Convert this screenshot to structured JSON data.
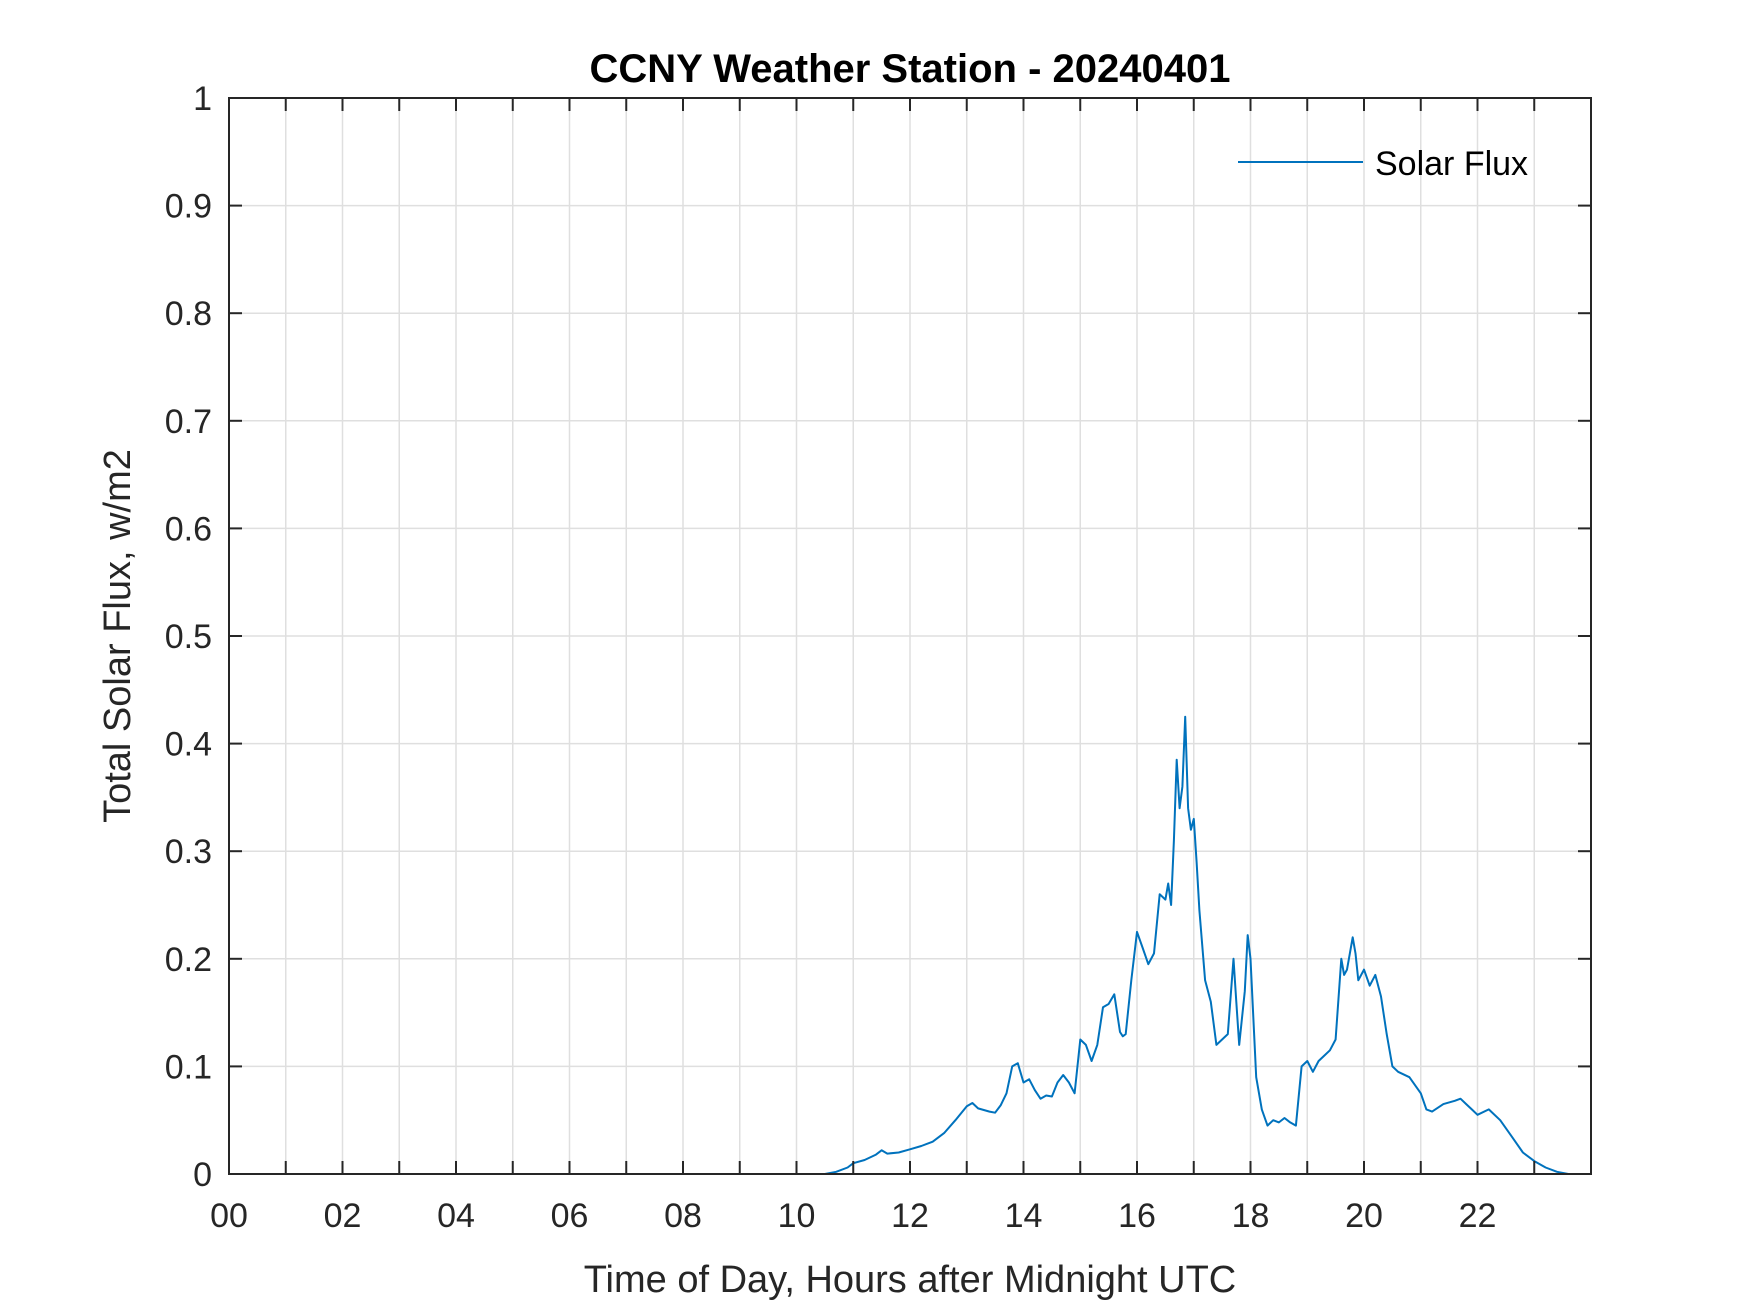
{
  "chart_data": {
    "type": "line",
    "title": "CCNY Weather Station - 20240401",
    "xlabel": "Time of Day, Hours after Midnight UTC",
    "ylabel": "Total Solar Flux, w/m2",
    "xlim": [
      0,
      24
    ],
    "ylim": [
      0,
      1
    ],
    "x_ticks": [
      0,
      2,
      4,
      6,
      8,
      10,
      12,
      14,
      16,
      18,
      20,
      22
    ],
    "x_tick_labels": [
      "00",
      "02",
      "04",
      "06",
      "08",
      "10",
      "12",
      "14",
      "16",
      "18",
      "20",
      "22"
    ],
    "x_minor_ticks": [
      1,
      3,
      5,
      7,
      9,
      11,
      13,
      15,
      17,
      19,
      21,
      23
    ],
    "y_ticks": [
      0,
      0.1,
      0.2,
      0.3,
      0.4,
      0.5,
      0.6,
      0.7,
      0.8,
      0.9,
      1
    ],
    "y_tick_labels": [
      "0",
      "0.1",
      "0.2",
      "0.3",
      "0.4",
      "0.5",
      "0.6",
      "0.7",
      "0.8",
      "0.9",
      "1"
    ],
    "grid": true,
    "legend_position": "top-right",
    "series": [
      {
        "name": "Solar Flux",
        "color": "#0072BD",
        "x": [
          0,
          10.5,
          10.7,
          10.9,
          11.0,
          11.2,
          11.4,
          11.5,
          11.6,
          11.8,
          12.0,
          12.2,
          12.4,
          12.6,
          12.8,
          13.0,
          13.1,
          13.2,
          13.4,
          13.5,
          13.6,
          13.7,
          13.8,
          13.9,
          14.0,
          14.1,
          14.2,
          14.3,
          14.4,
          14.5,
          14.6,
          14.7,
          14.8,
          14.9,
          15.0,
          15.1,
          15.2,
          15.3,
          15.4,
          15.5,
          15.6,
          15.7,
          15.75,
          15.8,
          15.9,
          16.0,
          16.1,
          16.2,
          16.3,
          16.4,
          16.5,
          16.55,
          16.6,
          16.65,
          16.7,
          16.75,
          16.8,
          16.85,
          16.9,
          16.95,
          17.0,
          17.05,
          17.1,
          17.2,
          17.3,
          17.4,
          17.5,
          17.6,
          17.7,
          17.75,
          17.8,
          17.9,
          17.95,
          18.0,
          18.1,
          18.2,
          18.3,
          18.4,
          18.5,
          18.6,
          18.7,
          18.8,
          18.9,
          19.0,
          19.1,
          19.2,
          19.3,
          19.4,
          19.5,
          19.6,
          19.65,
          19.7,
          19.8,
          19.85,
          19.9,
          20.0,
          20.1,
          20.2,
          20.3,
          20.4,
          20.5,
          20.6,
          20.8,
          21.0,
          21.1,
          21.2,
          21.4,
          21.6,
          21.7,
          21.8,
          21.9,
          22.0,
          22.2,
          22.4,
          22.6,
          22.8,
          23.0,
          23.2,
          23.4,
          23.6,
          23.8,
          24.0
        ],
        "values": [
          0,
          0,
          0.002,
          0.006,
          0.01,
          0.013,
          0.018,
          0.022,
          0.019,
          0.02,
          0.023,
          0.026,
          0.03,
          0.038,
          0.05,
          0.063,
          0.066,
          0.061,
          0.058,
          0.057,
          0.064,
          0.075,
          0.1,
          0.103,
          0.085,
          0.088,
          0.078,
          0.07,
          0.073,
          0.072,
          0.085,
          0.092,
          0.085,
          0.075,
          0.125,
          0.12,
          0.105,
          0.12,
          0.155,
          0.158,
          0.167,
          0.132,
          0.128,
          0.13,
          0.18,
          0.225,
          0.21,
          0.195,
          0.205,
          0.26,
          0.255,
          0.27,
          0.25,
          0.31,
          0.385,
          0.34,
          0.36,
          0.425,
          0.34,
          0.32,
          0.33,
          0.29,
          0.245,
          0.18,
          0.16,
          0.12,
          0.125,
          0.13,
          0.2,
          0.16,
          0.12,
          0.17,
          0.222,
          0.2,
          0.09,
          0.06,
          0.045,
          0.05,
          0.048,
          0.052,
          0.048,
          0.045,
          0.1,
          0.105,
          0.095,
          0.105,
          0.11,
          0.115,
          0.125,
          0.2,
          0.185,
          0.19,
          0.22,
          0.205,
          0.18,
          0.19,
          0.175,
          0.185,
          0.165,
          0.13,
          0.1,
          0.095,
          0.09,
          0.075,
          0.06,
          0.058,
          0.065,
          0.068,
          0.07,
          0.065,
          0.06,
          0.055,
          0.06,
          0.05,
          0.035,
          0.02,
          0.012,
          0.006,
          0.002,
          0,
          0,
          0
        ]
      }
    ]
  }
}
